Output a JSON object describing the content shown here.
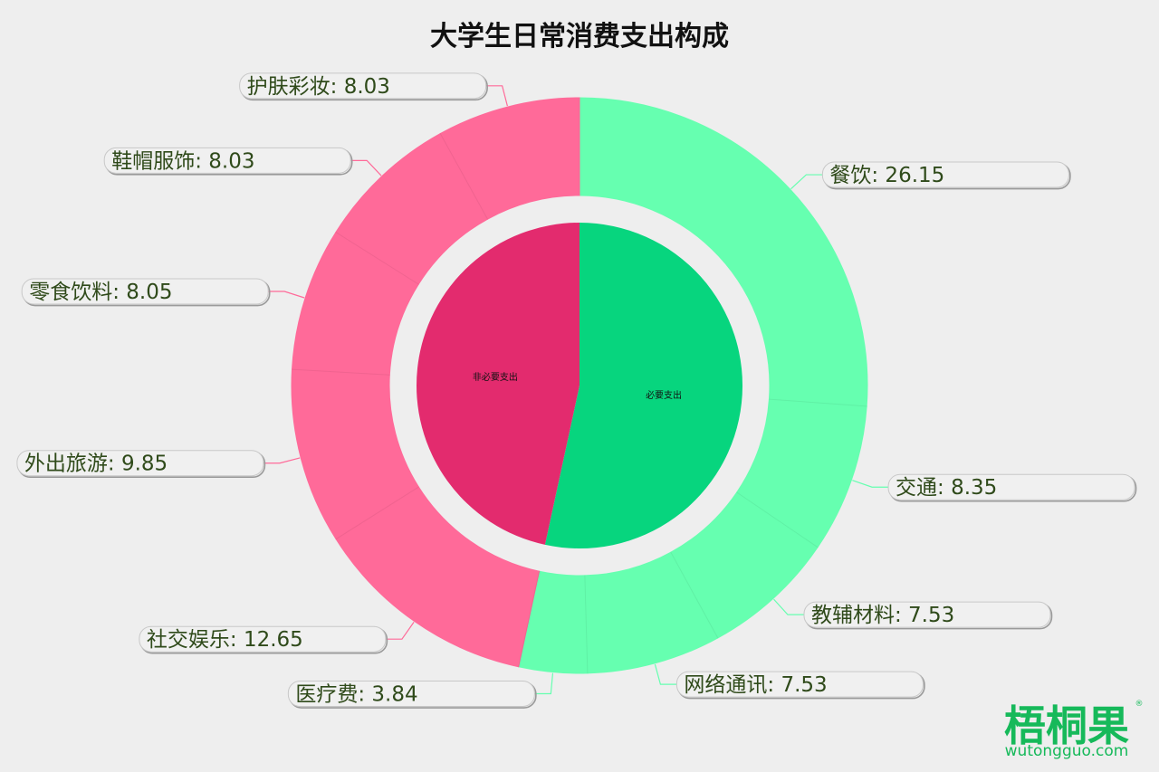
{
  "chart_data": {
    "type": "pie",
    "title": "大学生日常消费支出构成",
    "inner_groups": [
      {
        "name": "必要支出",
        "color": "#07d57e"
      },
      {
        "name": "非必要支出",
        "color": "#e32b6e"
      }
    ],
    "outer_items": [
      {
        "label": "餐饮",
        "value": 26.15,
        "group": "必要支出"
      },
      {
        "label": "交通",
        "value": 8.35,
        "group": "必要支出"
      },
      {
        "label": "教辅材料",
        "value": 7.53,
        "group": "必要支出"
      },
      {
        "label": "网络通讯",
        "value": 7.53,
        "group": "必要支出"
      },
      {
        "label": "医疗费",
        "value": 3.84,
        "group": "必要支出"
      },
      {
        "label": "社交娱乐",
        "value": 12.65,
        "group": "非必要支出"
      },
      {
        "label": "外出旅游",
        "value": 9.85,
        "group": "非必要支出"
      },
      {
        "label": "零食饮料",
        "value": 8.05,
        "group": "非必要支出"
      },
      {
        "label": "鞋帽服饰",
        "value": 8.03,
        "group": "非必要支出"
      },
      {
        "label": "护肤彩妆",
        "value": 8.03,
        "group": "非必要支出"
      }
    ],
    "colors": {
      "necessary_outer": "#66ffb0",
      "unnecessary_outer": "#ff6a99",
      "background": "#eeeeee"
    }
  },
  "watermark": {
    "brand": "梧桐果",
    "site": "wutongguo.com",
    "reg": "®"
  }
}
